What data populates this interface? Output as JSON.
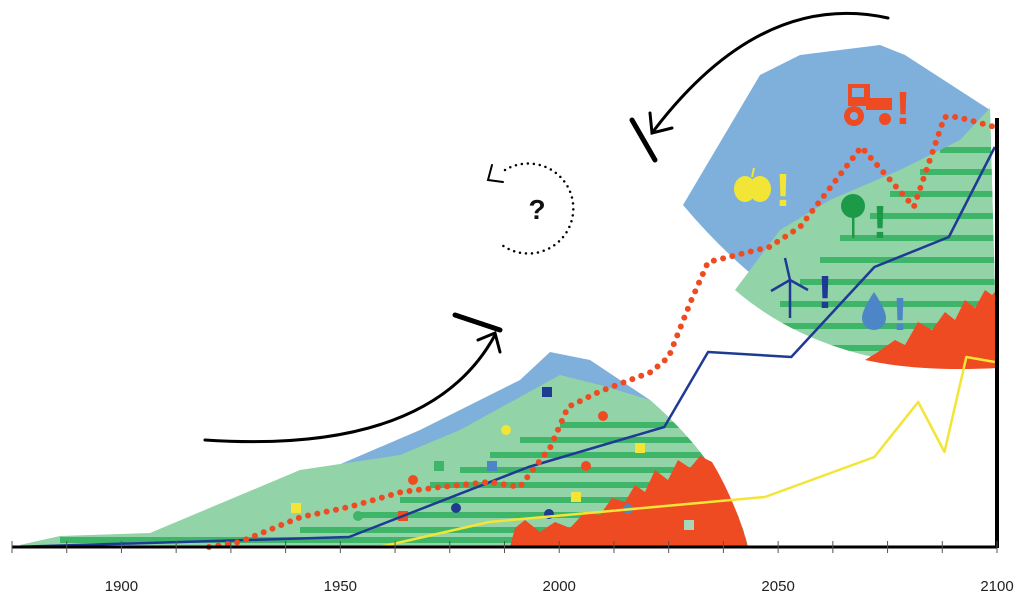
{
  "chart_data": {
    "type": "line",
    "xlim": [
      1875,
      2100
    ],
    "xticks": [
      1900,
      1950,
      2000,
      2050,
      2100
    ],
    "xminor_ticks": [
      1875,
      1887.5,
      1900,
      1912.5,
      1925,
      1937.5,
      1950,
      1962.5,
      1975,
      1987.5,
      2000,
      2012.5,
      2025,
      2037.5,
      2050,
      2062.5,
      2075,
      2087.5,
      2100
    ],
    "ylim": [
      0,
      100
    ],
    "series": [
      {
        "color": "#1f3a93",
        "style": "solid",
        "x": [
          1875,
          1952,
          1993,
          2024,
          2034,
          2053,
          2072,
          2089,
          2099.5
        ],
        "values": [
          0,
          2,
          16,
          24,
          39,
          38,
          56,
          62,
          80
        ]
      },
      {
        "color": "#f2e535",
        "style": "solid",
        "x": [
          1959,
          1984,
          2047,
          2072,
          2082,
          2088,
          2093,
          2099.5
        ],
        "values": [
          0,
          5,
          10,
          18,
          29,
          19,
          38,
          37
        ]
      },
      {
        "color": "#ee4b23",
        "style": "dotted",
        "x": [
          1920,
          1927,
          1941,
          1952,
          1964,
          1973,
          1984,
          1991,
          1998,
          2002,
          2009,
          2021,
          2025,
          2030,
          2034,
          2048,
          2055,
          2069,
          2081,
          2088,
          2091,
          2099.5
        ],
        "values": [
          0,
          1,
          6,
          8,
          11,
          12,
          13,
          12,
          20,
          28,
          31,
          35,
          38,
          49,
          57,
          60,
          64,
          80,
          68,
          86,
          86,
          84
        ]
      }
    ],
    "annotations": [
      "?"
    ],
    "icon_marks": [
      "!",
      "!",
      "!",
      "!",
      "!"
    ]
  }
}
